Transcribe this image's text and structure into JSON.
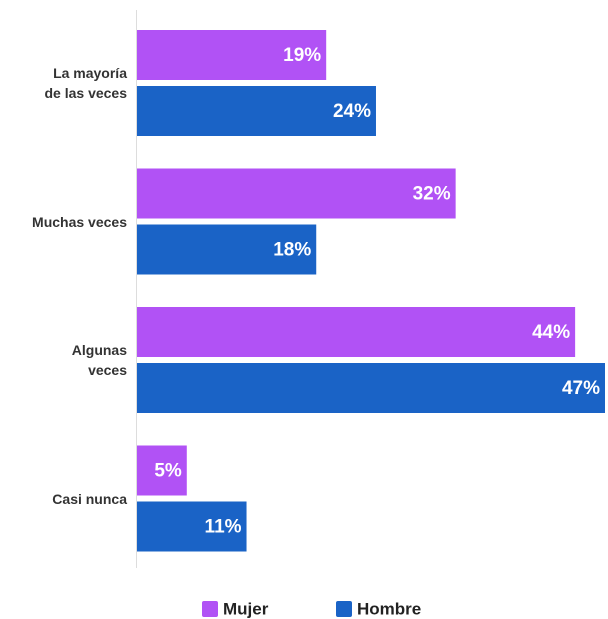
{
  "chart_data": {
    "type": "bar",
    "orientation": "horizontal",
    "categories": [
      "La mayoría\nde las veces",
      "Muchas veces",
      "Algunas\nveces",
      "Casi nunca"
    ],
    "series": [
      {
        "name": "Mujer",
        "color": "#b152f5",
        "values": [
          19,
          32,
          44,
          5
        ],
        "value_labels": [
          "19%",
          "32%",
          "44%",
          "5%"
        ]
      },
      {
        "name": "Hombre",
        "color": "#1a63c6",
        "values": [
          24,
          18,
          47,
          11
        ],
        "value_labels": [
          "24%",
          "18%",
          "47%",
          "11%"
        ]
      }
    ],
    "legend": "bottom"
  }
}
